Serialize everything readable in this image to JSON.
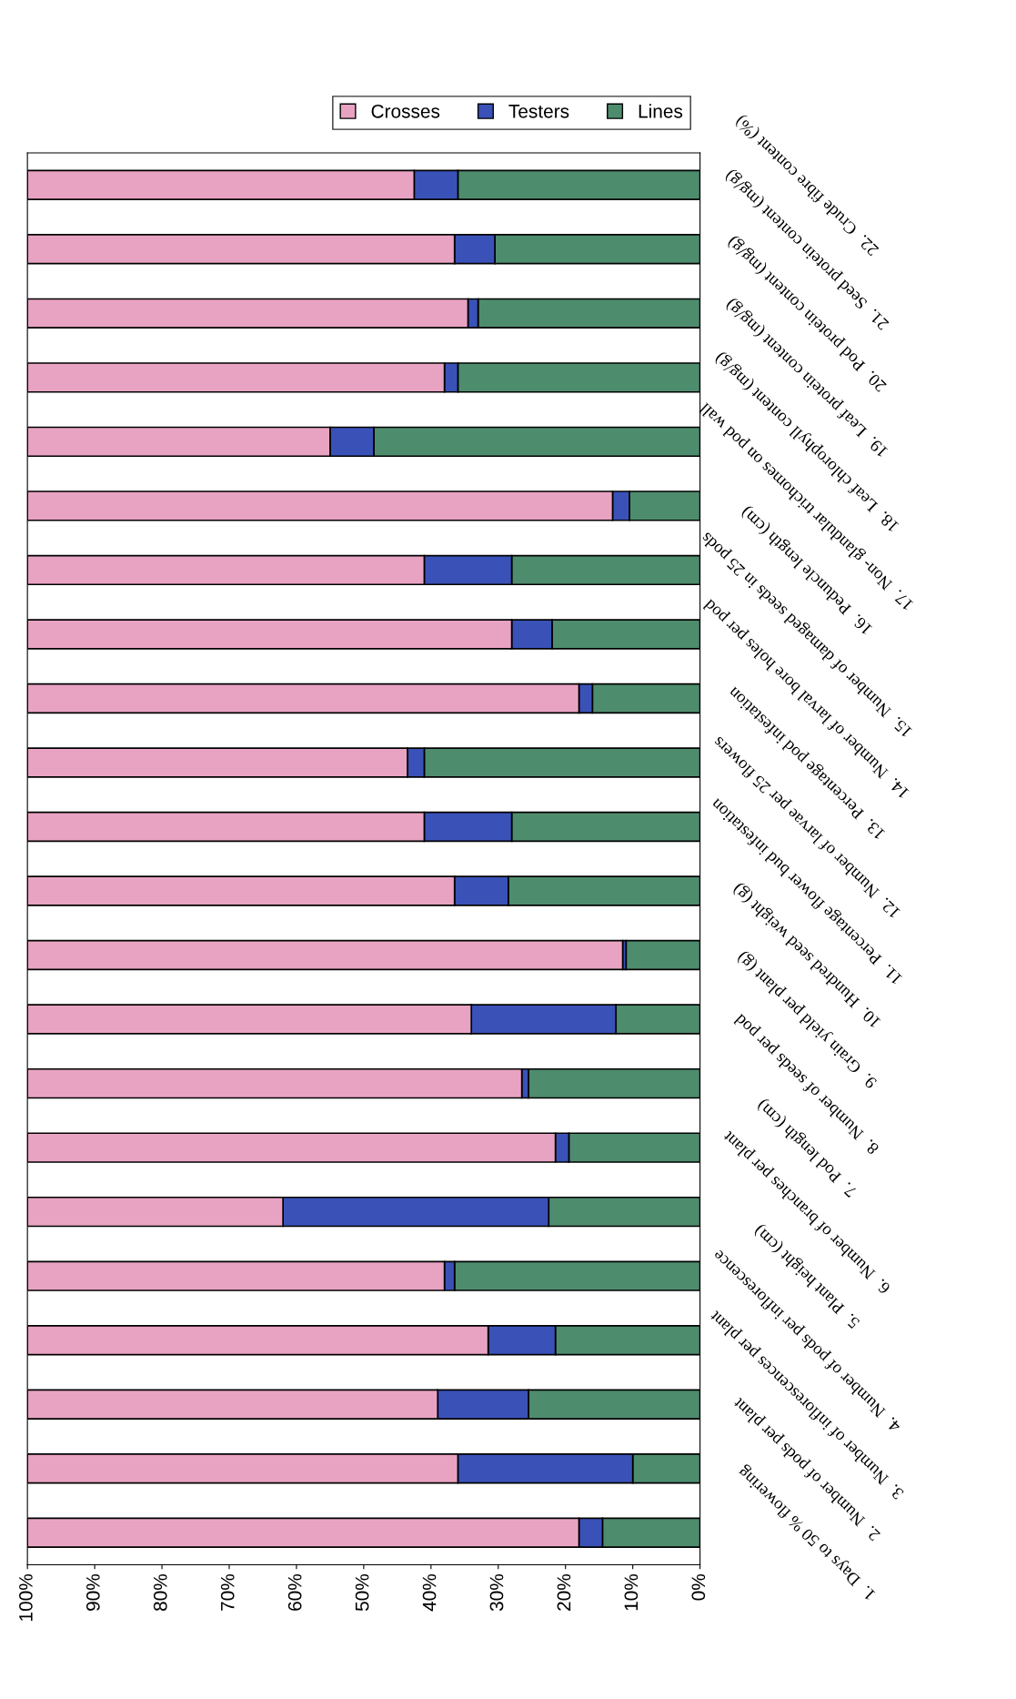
{
  "chart_data": {
    "type": "bar",
    "orientation": "horizontal",
    "stacked": true,
    "categories": [
      "22.  Crude fibre content (%)",
      "21.  Seed protein content (mg/g)",
      "20.  Pod protein content (mg/g)",
      "19.  Leaf protein content (mg/g)",
      "18.  Leaf chlorophyll content (mg/g)",
      "17.  Non- glandular trichomes on pod wall",
      "16.  Peduncle length (cm)",
      "15.  Number of damaged seeds in 25 pods",
      "14.  Number of larval bore holes per pod",
      "13.  Percentage pod infestation",
      "12.  Number of larvae per 25 flowers",
      "11.  Percentage flower bud infestation",
      "10.  Hundred seed weight (g)",
      "9.  Grain yield per plant (g)",
      "8.  Number of seeds per pod",
      "7.  Pod length (cm)",
      "6.  Number of branches per plant",
      "5.  Plant height (cm)",
      "4.  Number of pods per inflorescence",
      "3.  Number of inflorescences per plant",
      "2.  Number of pods per plant",
      "1.  Days to 50 % flowering"
    ],
    "series": [
      {
        "name": "Lines",
        "color": "#4e8c6e",
        "values": [
          36,
          30.5,
          33,
          36,
          48.5,
          10.5,
          28,
          22,
          16,
          41,
          28,
          28.5,
          11,
          12.5,
          25.5,
          19.5,
          22.5,
          36.5,
          21.5,
          25.5,
          10,
          14.5
        ]
      },
      {
        "name": "Testers",
        "color": "#3a52b8",
        "values": [
          6.5,
          6,
          1.5,
          2,
          6.5,
          2.5,
          13,
          6,
          2,
          2.5,
          13,
          8,
          0.5,
          21.5,
          1,
          2,
          39.5,
          1.5,
          10,
          13.5,
          26,
          3.5
        ]
      },
      {
        "name": "Crosses",
        "color": "#e9a3c2",
        "values": [
          57.5,
          63.5,
          65.5,
          62,
          45,
          87,
          59,
          72,
          82,
          56.5,
          59,
          63.5,
          88.5,
          66,
          73.5,
          78.5,
          38,
          62,
          68.5,
          61,
          64,
          82
        ]
      }
    ],
    "xlim": [
      100,
      0
    ],
    "xticks": [
      {
        "value": 100,
        "label": "100%"
      },
      {
        "value": 90,
        "label": "90%"
      },
      {
        "value": 80,
        "label": "80%"
      },
      {
        "value": 70,
        "label": "70%"
      },
      {
        "value": 60,
        "label": "60%"
      },
      {
        "value": 50,
        "label": "50%"
      },
      {
        "value": 40,
        "label": "40%"
      },
      {
        "value": 30,
        "label": "30%"
      },
      {
        "value": 20,
        "label": "20%"
      },
      {
        "value": 10,
        "label": "10%"
      },
      {
        "value": 0,
        "label": "0%"
      }
    ],
    "legend": "top right"
  }
}
